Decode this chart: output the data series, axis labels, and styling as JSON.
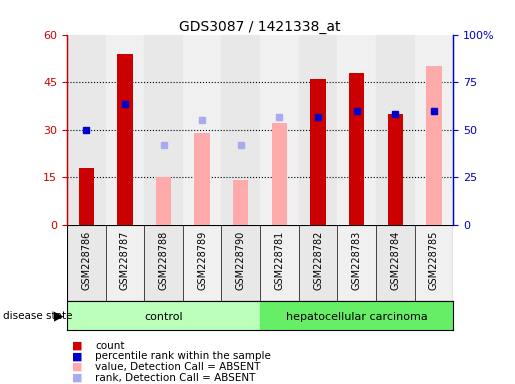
{
  "title": "GDS3087 / 1421338_at",
  "samples": [
    "GSM228786",
    "GSM228787",
    "GSM228788",
    "GSM228789",
    "GSM228790",
    "GSM228781",
    "GSM228782",
    "GSM228783",
    "GSM228784",
    "GSM228785"
  ],
  "n_control": 5,
  "red_bars": [
    18,
    54,
    null,
    null,
    null,
    null,
    46,
    48,
    35,
    null
  ],
  "pink_bars": [
    null,
    null,
    15,
    29,
    14,
    32,
    null,
    null,
    null,
    50
  ],
  "blue_dots": [
    30,
    38,
    null,
    null,
    null,
    null,
    34,
    36,
    35,
    36
  ],
  "lavender_dots": [
    null,
    null,
    25,
    33,
    25,
    34,
    null,
    null,
    null,
    36
  ],
  "ylim": [
    0,
    60
  ],
  "yticks_left": [
    0,
    15,
    30,
    45,
    60
  ],
  "yticks_right": [
    0,
    25,
    50,
    75,
    100
  ],
  "ytick_labels_right": [
    "0",
    "25",
    "50",
    "75",
    "100%"
  ],
  "color_red": "#cc0000",
  "color_pink": "#ffaaaa",
  "color_blue": "#0000cc",
  "color_lavender": "#aaaaee",
  "color_control": "#bbffbb",
  "color_cancer": "#66ee66",
  "col_even": "#e8e8e8",
  "col_odd": "#f0f0f0",
  "bar_width": 0.4,
  "dot_size": 4
}
